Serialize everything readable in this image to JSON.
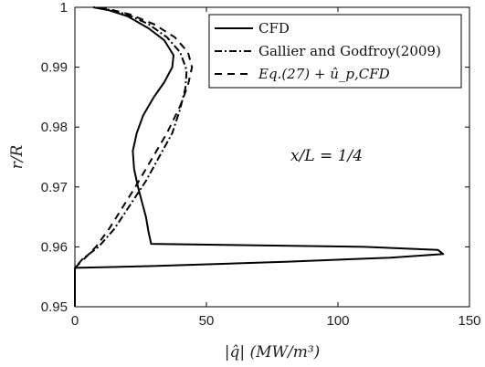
{
  "chart_data": {
    "type": "line",
    "xlabel": "|q̂| (MW/m³)",
    "ylabel": "r/R",
    "xlim": [
      0,
      150
    ],
    "ylim": [
      0.95,
      1.0
    ],
    "xticks": [
      0,
      50,
      100,
      150
    ],
    "xtick_labels": [
      "0",
      "50",
      "100",
      "150"
    ],
    "yticks": [
      0.95,
      0.96,
      0.97,
      0.98,
      0.99,
      1.0
    ],
    "ytick_labels": [
      "0.95",
      "0.96",
      "0.97",
      "0.98",
      "0.99",
      "1"
    ],
    "grid": false,
    "legend_position": "top-right",
    "annotation": "x/L = 1/4",
    "series": [
      {
        "name": "CFD",
        "style": "solid",
        "points": [
          [
            0,
            0.95
          ],
          [
            0,
            0.9565
          ],
          [
            30,
            0.9568
          ],
          [
            80,
            0.9575
          ],
          [
            120,
            0.9582
          ],
          [
            140,
            0.9588
          ],
          [
            138,
            0.9595
          ],
          [
            110,
            0.96
          ],
          [
            60,
            0.9603
          ],
          [
            29,
            0.9605
          ],
          [
            28,
            0.9625
          ],
          [
            27,
            0.965
          ],
          [
            25.5,
            0.9675
          ],
          [
            24,
            0.97
          ],
          [
            22.5,
            0.973
          ],
          [
            22,
            0.976
          ],
          [
            23.5,
            0.979
          ],
          [
            26,
            0.982
          ],
          [
            30,
            0.985
          ],
          [
            34,
            0.9875
          ],
          [
            37,
            0.99
          ],
          [
            37.5,
            0.992
          ],
          [
            34,
            0.9945
          ],
          [
            28,
            0.9965
          ],
          [
            20,
            0.9985
          ],
          [
            13,
            0.9995
          ],
          [
            7,
            1.0
          ]
        ]
      },
      {
        "name": "Gallier and Godfroy(2009)",
        "style": "dashdot",
        "points": [
          [
            0,
            0.95
          ],
          [
            0,
            0.9565
          ],
          [
            3,
            0.958
          ],
          [
            9,
            0.96
          ],
          [
            15,
            0.963
          ],
          [
            21,
            0.967
          ],
          [
            27,
            0.971
          ],
          [
            32,
            0.975
          ],
          [
            37,
            0.979
          ],
          [
            40,
            0.983
          ],
          [
            42,
            0.9865
          ],
          [
            42.5,
            0.9895
          ],
          [
            40,
            0.9925
          ],
          [
            35,
            0.995
          ],
          [
            28,
            0.9972
          ],
          [
            20,
            0.9988
          ],
          [
            12,
            0.9997
          ],
          [
            7,
            1.0
          ]
        ]
      },
      {
        "name": "Eq.(27) + û_p,CFD",
        "style": "dashed",
        "points": [
          [
            0,
            0.95
          ],
          [
            0,
            0.9565
          ],
          [
            4,
            0.9582
          ],
          [
            8,
            0.96
          ],
          [
            13,
            0.963
          ],
          [
            18,
            0.9665
          ],
          [
            23,
            0.97
          ],
          [
            29,
            0.9745
          ],
          [
            35,
            0.979
          ],
          [
            40,
            0.9835
          ],
          [
            43,
            0.987
          ],
          [
            44.5,
            0.99
          ],
          [
            43,
            0.9925
          ],
          [
            38,
            0.995
          ],
          [
            30,
            0.9972
          ],
          [
            21,
            0.9988
          ],
          [
            13,
            0.9997
          ],
          [
            8,
            1.0
          ]
        ]
      }
    ]
  }
}
